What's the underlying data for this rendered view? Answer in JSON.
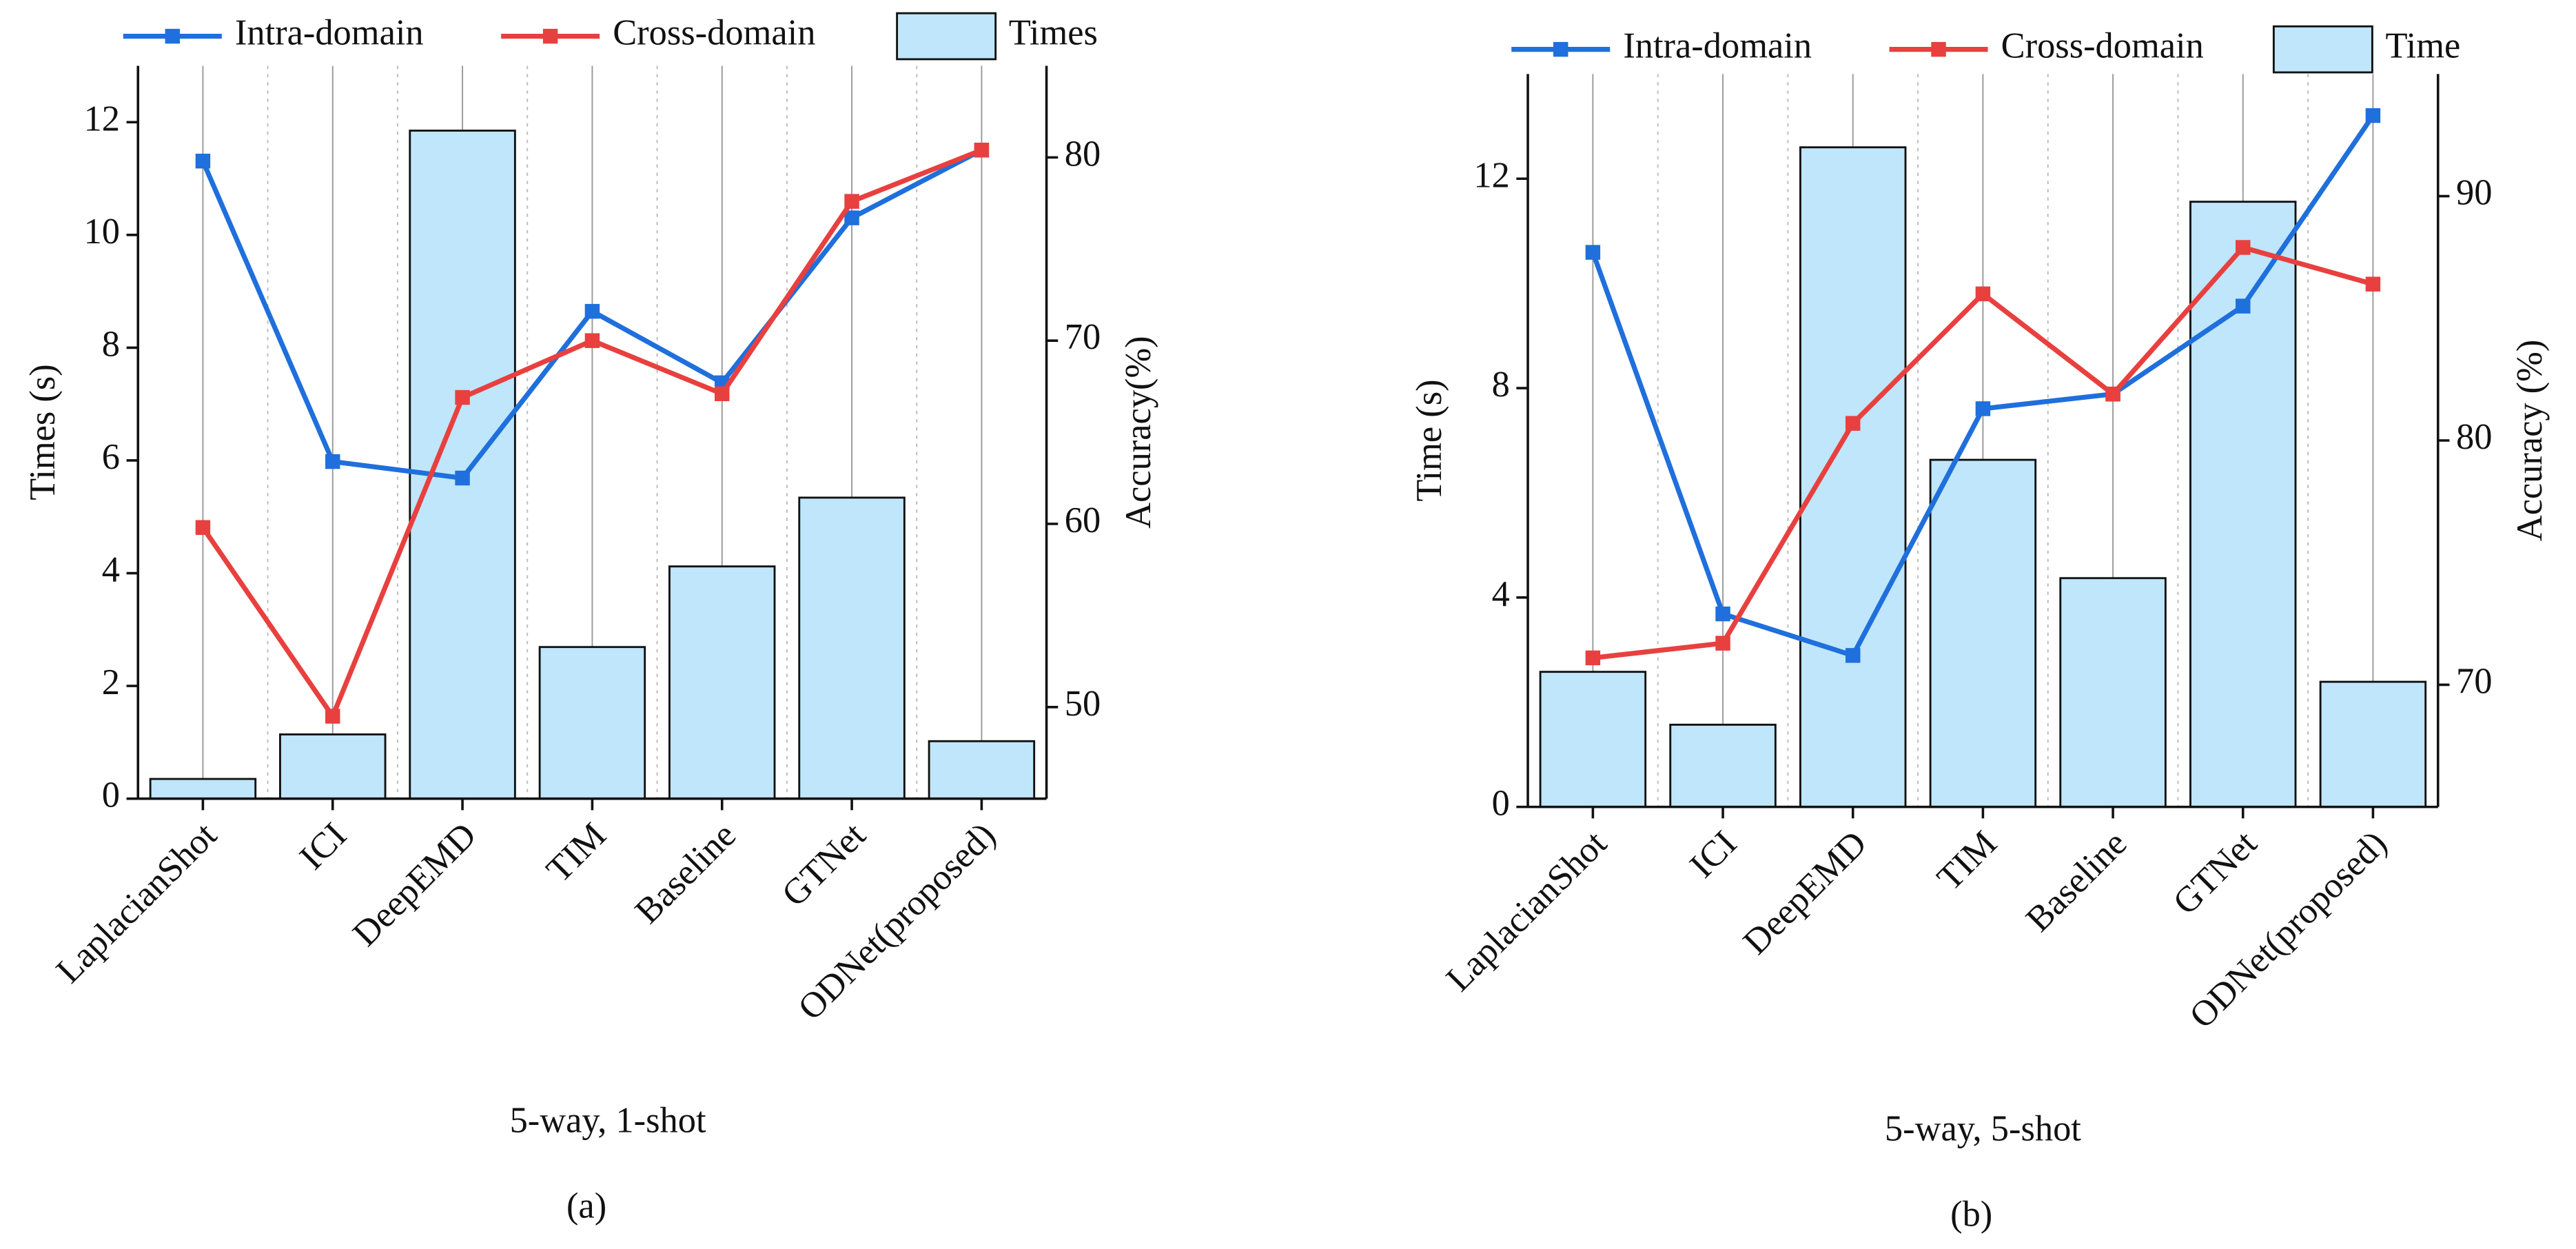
{
  "chart_data": [
    {
      "type": "combo",
      "caption": "(a)",
      "x_label": "5-way, 1-shot",
      "y_label": "Times (s)",
      "y2_label": "Accuracy(%)",
      "categories": [
        "LaplacianShot",
        "ICI",
        "DeepEMD",
        "TIM",
        "Baseline",
        "GTNet",
        "ODNet(proposed)"
      ],
      "series": [
        {
          "name": "Intra-domain",
          "type": "line",
          "axis": "y2",
          "color": "#1f6fdc",
          "values": [
            79.8,
            63.4,
            62.5,
            71.6,
            67.7,
            76.7,
            80.4
          ]
        },
        {
          "name": "Cross-domain",
          "type": "line",
          "axis": "y2",
          "color": "#e8403f",
          "values": [
            59.8,
            49.5,
            66.9,
            70.0,
            67.1,
            77.6,
            80.4
          ]
        },
        {
          "name": "Times",
          "type": "bar",
          "axis": "y",
          "color": "#bfe6fb",
          "values": [
            0.35,
            1.14,
            11.85,
            2.69,
            4.12,
            5.34,
            1.02
          ]
        }
      ],
      "ylim": [
        0,
        13
      ],
      "yticks": [
        0,
        2,
        4,
        6,
        8,
        10,
        12
      ],
      "y2lim": [
        45,
        85
      ],
      "y2ticks": [
        50,
        60,
        70,
        80
      ],
      "grid": true
    },
    {
      "type": "combo",
      "caption": "(b)",
      "x_label": "5-way, 5-shot",
      "y_label": "Time (s)",
      "y2_label": "Accuracy (%)",
      "categories": [
        "LaplacianShot",
        "ICI",
        "DeepEMD",
        "TIM",
        "Baseline",
        "GTNet",
        "ODNet(proposed)"
      ],
      "series": [
        {
          "name": "Intra-domain",
          "type": "line",
          "axis": "y2",
          "color": "#1f6fdc",
          "values": [
            87.7,
            72.9,
            71.2,
            81.3,
            81.9,
            85.5,
            93.3
          ]
        },
        {
          "name": "Cross-domain",
          "type": "line",
          "axis": "y2",
          "color": "#e8403f",
          "values": [
            71.1,
            71.7,
            80.7,
            86.0,
            81.9,
            87.9,
            86.4
          ]
        },
        {
          "name": "Time",
          "type": "bar",
          "axis": "y",
          "color": "#bfe6fb",
          "values": [
            2.58,
            1.57,
            12.6,
            6.63,
            4.37,
            11.56,
            2.39
          ]
        }
      ],
      "ylim": [
        0,
        14
      ],
      "yticks": [
        0,
        4,
        8,
        12
      ],
      "y2lim": [
        65,
        95
      ],
      "y2ticks": [
        70,
        80,
        90
      ],
      "grid": true
    }
  ]
}
